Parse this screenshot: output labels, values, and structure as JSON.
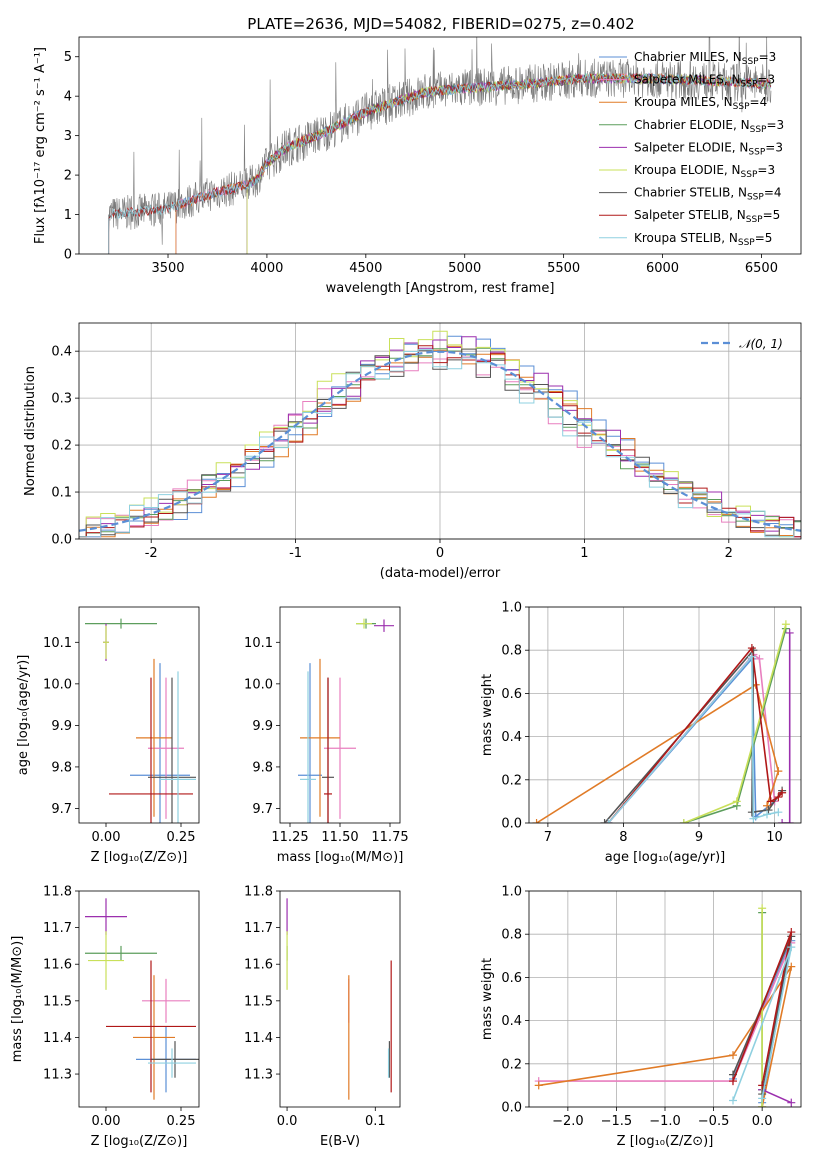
{
  "figure": {
    "title": "PLATE=2636, MJD=54082, FIBERID=0275, z=0.402"
  },
  "colors": {
    "chabrier_miles": "#5b8fd6",
    "salpeter_miles": "#e87fbf",
    "kroupa_miles": "#e07b27",
    "chabrier_elodie": "#5c9e5c",
    "salpeter_elodie": "#9b2fae",
    "kroupa_elodie": "#c9e05a",
    "chabrier_stelib": "#555555",
    "salpeter_stelib": "#b01818",
    "kroupa_stelib": "#8fd0e0",
    "gauss": "#5b8fd6",
    "grid": "#b0b0b0"
  },
  "chart_data": [
    {
      "id": "spectrum",
      "type": "line",
      "xlabel": "wavelength [Angstrom, rest frame]",
      "ylabel": "Flux [fλ10⁻¹⁷ erg cm⁻² s⁻¹ A⁻¹]",
      "xlim": [
        3050,
        6700
      ],
      "ylim": [
        0,
        5.5
      ],
      "xticks": [
        3500,
        4000,
        4500,
        5000,
        5500,
        6000,
        6500
      ],
      "yticks": [
        0,
        1,
        2,
        3,
        4,
        5
      ],
      "grid": false,
      "legend_position": "upper right",
      "legend": [
        {
          "label": "Chabrier MILES, N",
          "sub": "SSP",
          "tail": "=3",
          "color": "#5b8fd6"
        },
        {
          "label": "Salpeter MILES, N",
          "sub": "SSP",
          "tail": "=3",
          "color": "#e87fbf"
        },
        {
          "label": "Kroupa MILES, N",
          "sub": "SSP",
          "tail": "=4",
          "color": "#e07b27"
        },
        {
          "label": "Chabrier ELODIE, N",
          "sub": "SSP",
          "tail": "=3",
          "color": "#5c9e5c"
        },
        {
          "label": "Salpeter ELODIE, N",
          "sub": "SSP",
          "tail": "=3",
          "color": "#9b2fae"
        },
        {
          "label": "Kroupa ELODIE, N",
          "sub": "SSP",
          "tail": "=3",
          "color": "#c9e05a"
        },
        {
          "label": "Chabrier STELIB, N",
          "sub": "SSP",
          "tail": "=4",
          "color": "#555555"
        },
        {
          "label": "Salpeter STELIB, N",
          "sub": "SSP",
          "tail": "=5",
          "color": "#b01818"
        },
        {
          "label": "Kroupa STELIB, N",
          "sub": "SSP",
          "tail": "=5",
          "color": "#8fd0e0"
        }
      ],
      "continuum": {
        "x": [
          3200,
          3300,
          3500,
          3700,
          3900,
          3950,
          4000,
          4100,
          4300,
          4500,
          4800,
          5000,
          5300,
          5600,
          5900,
          6200,
          6550
        ],
        "y": [
          1.0,
          1.05,
          1.15,
          1.5,
          1.75,
          1.9,
          2.3,
          2.7,
          3.1,
          3.6,
          4.1,
          4.2,
          4.3,
          4.45,
          4.45,
          4.4,
          4.3
        ]
      },
      "data_range": [
        3200,
        6550
      ],
      "model_ranges": {
        "miles": [
          3540,
          6550
        ],
        "elodie": [
          3900,
          6550
        ],
        "stelib": [
          3200,
          6550
        ]
      }
    },
    {
      "id": "residual_hist",
      "type": "histogram",
      "xlabel": "(data-model)/error",
      "ylabel": "Normed distribution",
      "xlim": [
        -2.5,
        2.5
      ],
      "ylim": [
        0,
        0.46
      ],
      "xticks": [
        -2,
        -1,
        0,
        1,
        2
      ],
      "yticks": [
        0.0,
        0.1,
        0.2,
        0.3,
        0.4
      ],
      "grid": true,
      "legend": [
        {
          "label": "𝒩(0, 1)",
          "color": "#5b8fd6",
          "style": "dashed"
        }
      ],
      "bin_width": 0.1,
      "series": [
        {
          "name": "Chabrier MILES",
          "color": "#5b8fd6",
          "shift": 0.3,
          "amp": 1.03
        },
        {
          "name": "Salpeter MILES",
          "color": "#e87fbf",
          "shift": -0.15,
          "amp": 0.97
        },
        {
          "name": "Kroupa MILES",
          "color": "#e07b27",
          "shift": 0.2,
          "amp": 1.0
        },
        {
          "name": "Chabrier ELODIE",
          "color": "#5c9e5c",
          "shift": 0.05,
          "amp": 0.99
        },
        {
          "name": "Salpeter ELODIE",
          "color": "#9b2fae",
          "shift": 0.1,
          "amp": 1.02
        },
        {
          "name": "Kroupa ELODIE",
          "color": "#c9e05a",
          "shift": -0.05,
          "amp": 1.05
        },
        {
          "name": "Chabrier STELIB",
          "color": "#555555",
          "shift": 0.0,
          "amp": 0.98
        },
        {
          "name": "Salpeter STELIB",
          "color": "#b01818",
          "shift": 0.15,
          "amp": 1.0
        },
        {
          "name": "Kroupa STELIB",
          "color": "#8fd0e0",
          "shift": -0.1,
          "amp": 0.96
        }
      ]
    },
    {
      "id": "age_vs_Z",
      "type": "errorbar",
      "xlabel": "Z [log₁₀(Z/Z⊙)]",
      "ylabel": "age  [log₁₀(age/yr)]",
      "xlim": [
        -0.09,
        0.31
      ],
      "ylim": [
        9.665,
        10.185
      ],
      "xticks": [
        0.0,
        0.25
      ],
      "xticklabels": [
        "0.00",
        "0.25"
      ],
      "yticks": [
        9.7,
        9.8,
        9.9,
        10.0,
        10.1
      ],
      "points": [
        {
          "x": 0.18,
          "y": 9.78,
          "xerr": 0.1,
          "yerr": 0.27,
          "color": "#5b8fd6"
        },
        {
          "x": 0.2,
          "y": 9.845,
          "xerr": 0.06,
          "yerr": 0.17,
          "color": "#e87fbf"
        },
        {
          "x": 0.16,
          "y": 9.87,
          "xerr": 0.06,
          "yerr": 0.19,
          "color": "#e07b27"
        },
        {
          "x": 0.05,
          "y": 10.145,
          "xerr": 0.12,
          "yerr": 0.012,
          "color": "#5c9e5c"
        },
        {
          "x": 0.0,
          "y": 10.1,
          "xerr": 0.01,
          "yerr": 0.045,
          "color": "#9b2fae"
        },
        {
          "x": 0.0,
          "y": 10.1,
          "xerr": 0.01,
          "yerr": 0.04,
          "color": "#c9e05a"
        },
        {
          "x": 0.22,
          "y": 9.775,
          "xerr": 0.08,
          "yerr": 0.24,
          "color": "#555555"
        },
        {
          "x": 0.15,
          "y": 9.735,
          "xerr": 0.14,
          "yerr": 0.28,
          "color": "#b01818"
        },
        {
          "x": 0.24,
          "y": 9.77,
          "xerr": 0.06,
          "yerr": 0.26,
          "color": "#8fd0e0"
        }
      ]
    },
    {
      "id": "age_vs_mass",
      "type": "errorbar",
      "xlabel": "mass [log₁₀(M/M⊙)]",
      "ylabel": "",
      "xlim": [
        11.2,
        11.8
      ],
      "ylim": [
        9.665,
        10.185
      ],
      "xticks": [
        11.25,
        11.5,
        11.75
      ],
      "xticklabels": [
        "11.25",
        "11.50",
        "11.75"
      ],
      "yticks": [
        9.7,
        9.8,
        9.9,
        10.0,
        10.1
      ],
      "points": [
        {
          "x": 11.35,
          "y": 9.78,
          "xerr": 0.06,
          "yerr": 0.27,
          "color": "#5b8fd6"
        },
        {
          "x": 11.5,
          "y": 9.845,
          "xerr": 0.08,
          "yerr": 0.17,
          "color": "#e87fbf"
        },
        {
          "x": 11.4,
          "y": 9.87,
          "xerr": 0.1,
          "yerr": 0.19,
          "color": "#e07b27"
        },
        {
          "x": 11.63,
          "y": 10.145,
          "xerr": 0.05,
          "yerr": 0.012,
          "color": "#5c9e5c"
        },
        {
          "x": 11.72,
          "y": 10.14,
          "xerr": 0.05,
          "yerr": 0.015,
          "color": "#9b2fae"
        },
        {
          "x": 11.62,
          "y": 10.145,
          "xerr": 0.04,
          "yerr": 0.012,
          "color": "#c9e05a"
        },
        {
          "x": 11.44,
          "y": 9.775,
          "xerr": 0.03,
          "yerr": 0.24,
          "color": "#555555"
        },
        {
          "x": 11.44,
          "y": 9.735,
          "xerr": 0.02,
          "yerr": 0.28,
          "color": "#b01818"
        },
        {
          "x": 11.34,
          "y": 9.77,
          "xerr": 0.04,
          "yerr": 0.26,
          "color": "#8fd0e0"
        }
      ]
    },
    {
      "id": "mass_weight_vs_age",
      "type": "line",
      "xlabel": "age  [log₁₀(age/yr)]",
      "ylabel": "mass weight",
      "xlim": [
        6.75,
        10.35
      ],
      "ylim": [
        0,
        1.0
      ],
      "xticks": [
        7,
        8,
        9,
        10
      ],
      "yticks": [
        0.0,
        0.2,
        0.4,
        0.6,
        0.8,
        1.0
      ],
      "grid": true,
      "series": [
        {
          "name": "Chabrier MILES",
          "color": "#5b8fd6",
          "x": [
            7.8,
            9.7,
            9.75,
            10.0
          ],
          "y": [
            0.0,
            0.76,
            0.03,
            0.1
          ]
        },
        {
          "name": "Salpeter MILES",
          "color": "#e87fbf",
          "x": [
            7.8,
            9.72,
            9.8,
            10.0
          ],
          "y": [
            0.0,
            0.78,
            0.76,
            0.1
          ]
        },
        {
          "name": "Kroupa MILES",
          "color": "#e07b27",
          "x": [
            6.85,
            9.75,
            10.05,
            9.9
          ],
          "y": [
            0.0,
            0.64,
            0.24,
            0.08
          ]
        },
        {
          "name": "Chabrier ELODIE",
          "color": "#5c9e5c",
          "x": [
            8.8,
            9.5,
            10.15
          ],
          "y": [
            0.0,
            0.08,
            0.9
          ]
        },
        {
          "name": "Salpeter ELODIE",
          "color": "#9b2fae",
          "x": [
            10.1,
            10.2,
            10.2
          ],
          "y": [
            0.0,
            0.0,
            0.88
          ]
        },
        {
          "name": "Kroupa ELODIE",
          "color": "#c9e05a",
          "x": [
            8.8,
            9.5,
            10.15
          ],
          "y": [
            0.0,
            0.1,
            0.92
          ]
        },
        {
          "name": "Chabrier STELIB",
          "color": "#555555",
          "x": [
            7.75,
            9.72,
            9.7,
            9.92,
            10.1
          ],
          "y": [
            0.0,
            0.8,
            0.05,
            0.06,
            0.15
          ]
        },
        {
          "name": "Salpeter STELIB",
          "color": "#b01818",
          "x": [
            7.8,
            9.7,
            9.95,
            10.05,
            10.1
          ],
          "y": [
            0.0,
            0.81,
            0.1,
            0.12,
            0.14
          ]
        },
        {
          "name": "Kroupa STELIB",
          "color": "#8fd0e0",
          "x": [
            7.8,
            9.7,
            9.72,
            9.9,
            10.05
          ],
          "y": [
            0.0,
            0.77,
            0.02,
            0.04,
            0.05
          ]
        }
      ]
    },
    {
      "id": "mass_vs_Z",
      "type": "errorbar",
      "xlabel": "Z [log₁₀(Z/Z⊙)]",
      "ylabel": "mass [log₁₀(M/M⊙)]",
      "xlim": [
        -0.09,
        0.31
      ],
      "ylim": [
        11.21,
        11.8
      ],
      "xticks": [
        0.0,
        0.25
      ],
      "xticklabels": [
        "0.00",
        "0.25"
      ],
      "yticks": [
        11.3,
        11.4,
        11.5,
        11.6,
        11.7,
        11.8
      ],
      "points": [
        {
          "x": 0.2,
          "y": 11.34,
          "xerr": 0.1,
          "yerr": 0.09,
          "color": "#5b8fd6"
        },
        {
          "x": 0.2,
          "y": 11.5,
          "xerr": 0.08,
          "yerr": 0.06,
          "color": "#e87fbf"
        },
        {
          "x": 0.16,
          "y": 11.4,
          "xerr": 0.07,
          "yerr": 0.17,
          "color": "#e07b27"
        },
        {
          "x": 0.05,
          "y": 11.63,
          "xerr": 0.12,
          "yerr": 0.02,
          "color": "#5c9e5c"
        },
        {
          "x": 0.0,
          "y": 11.73,
          "xerr": 0.07,
          "yerr": 0.05,
          "color": "#9b2fae"
        },
        {
          "x": 0.0,
          "y": 11.61,
          "xerr": 0.06,
          "yerr": 0.08,
          "color": "#c9e05a"
        },
        {
          "x": 0.23,
          "y": 11.34,
          "xerr": 0.08,
          "yerr": 0.05,
          "color": "#555555"
        },
        {
          "x": 0.15,
          "y": 11.43,
          "xerr": 0.15,
          "yerr": 0.18,
          "color": "#b01818"
        },
        {
          "x": 0.22,
          "y": 11.33,
          "xerr": 0.08,
          "yerr": 0.04,
          "color": "#8fd0e0"
        }
      ]
    },
    {
      "id": "mass_vs_ebv",
      "type": "errorbar",
      "xlabel": "E(B-V)",
      "ylabel": "",
      "xlim": [
        -0.008,
        0.128
      ],
      "ylim": [
        11.21,
        11.8
      ],
      "xticks": [
        0.0,
        0.1
      ],
      "xticklabels": [
        "0.0",
        "0.1"
      ],
      "yticks": [
        11.3,
        11.4,
        11.5,
        11.6,
        11.7,
        11.8
      ],
      "points": [
        {
          "x": 0.0,
          "y": 11.73,
          "xerr": 0.0,
          "yerr": 0.05,
          "color": "#9b2fae"
        },
        {
          "x": 0.0,
          "y": 11.63,
          "xerr": 0.0,
          "yerr": 0.02,
          "color": "#5c9e5c"
        },
        {
          "x": 0.0,
          "y": 11.61,
          "xerr": 0.0,
          "yerr": 0.08,
          "color": "#c9e05a"
        },
        {
          "x": 0.07,
          "y": 11.5,
          "xerr": 0.0,
          "yerr": 0.06,
          "color": "#e87fbf"
        },
        {
          "x": 0.07,
          "y": 11.4,
          "xerr": 0.0,
          "yerr": 0.17,
          "color": "#e07b27"
        },
        {
          "x": 0.118,
          "y": 11.43,
          "xerr": 0.0,
          "yerr": 0.18,
          "color": "#b01818"
        },
        {
          "x": 0.116,
          "y": 11.34,
          "xerr": 0.0,
          "yerr": 0.05,
          "color": "#555555"
        },
        {
          "x": 0.115,
          "y": 11.33,
          "xerr": 0.0,
          "yerr": 0.04,
          "color": "#8fd0e0"
        }
      ]
    },
    {
      "id": "mass_weight_vs_Z",
      "type": "line",
      "xlabel": "Z [log₁₀(Z/Z⊙)]",
      "ylabel": "mass weight",
      "xlim": [
        -2.4,
        0.4
      ],
      "ylim": [
        0,
        1.0
      ],
      "xticks": [
        -2.0,
        -1.5,
        -1.0,
        -0.5,
        0.0
      ],
      "xticklabels": [
        "−2.0",
        "−1.5",
        "−1.0",
        "−0.5",
        "0.0"
      ],
      "yticks": [
        0.0,
        0.2,
        0.4,
        0.6,
        0.8,
        1.0
      ],
      "grid": true,
      "series": [
        {
          "name": "Chabrier MILES",
          "color": "#5b8fd6",
          "x": [
            -0.3,
            0.3,
            0.0
          ],
          "y": [
            0.13,
            0.77,
            0.02
          ]
        },
        {
          "name": "Salpeter MILES",
          "color": "#e87fbf",
          "x": [
            -2.3,
            -0.3,
            0.3
          ],
          "y": [
            0.12,
            0.12,
            0.76
          ]
        },
        {
          "name": "Kroupa MILES",
          "color": "#e07b27",
          "x": [
            -2.3,
            -0.3,
            0.3,
            0.0
          ],
          "y": [
            0.1,
            0.24,
            0.65,
            0.0
          ]
        },
        {
          "name": "Chabrier ELODIE",
          "color": "#5c9e5c",
          "x": [
            0.0,
            0.0,
            0.0
          ],
          "y": [
            0.0,
            0.08,
            0.9
          ]
        },
        {
          "name": "Salpeter ELODIE",
          "color": "#9b2fae",
          "x": [
            0.0,
            0.3
          ],
          "y": [
            0.08,
            0.02
          ]
        },
        {
          "name": "Kroupa ELODIE",
          "color": "#c9e05a",
          "x": [
            0.0,
            0.0
          ],
          "y": [
            0.0,
            0.92
          ]
        },
        {
          "name": "Chabrier STELIB",
          "color": "#555555",
          "x": [
            -0.3,
            0.3,
            0.0
          ],
          "y": [
            0.15,
            0.79,
            0.06
          ]
        },
        {
          "name": "Salpeter STELIB",
          "color": "#b01818",
          "x": [
            -0.3,
            0.3,
            0.0
          ],
          "y": [
            0.12,
            0.81,
            0.1
          ]
        },
        {
          "name": "Kroupa STELIB",
          "color": "#8fd0e0",
          "x": [
            -0.3,
            0.3,
            0.0
          ],
          "y": [
            0.03,
            0.74,
            0.04
          ]
        }
      ]
    }
  ]
}
